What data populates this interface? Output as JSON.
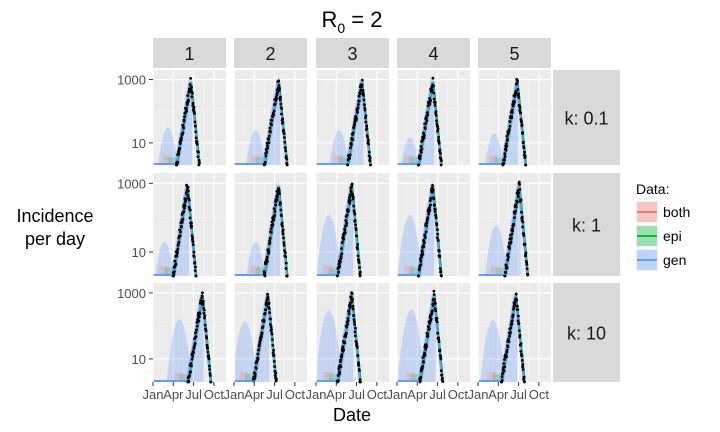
{
  "chart_data": {
    "type": "line",
    "title": "R",
    "title_subscript": "0",
    "title_suffix": " = 2",
    "xlabel": "Date",
    "ylabel_lines": [
      "Incidence",
      "per day"
    ],
    "y_scale": "log10",
    "ylim": [
      2,
      2000
    ],
    "y_ticks": [
      10,
      1000
    ],
    "y_tick_labels": [
      "10",
      "1000"
    ],
    "x_ticks": [
      "Jan",
      "Apr",
      "Jul",
      "Oct"
    ],
    "xlim_month_index": [
      0,
      10.8
    ],
    "x_tick_month_index": [
      0,
      3,
      6,
      9
    ],
    "columns": [
      "1",
      "2",
      "3",
      "4",
      "5"
    ],
    "rows": [
      "k: 0.1",
      "k: 1",
      "k: 10"
    ],
    "grid": true,
    "legend": {
      "title": "Data:",
      "placement": "right",
      "entries": [
        {
          "label": "both",
          "color": "#F8766D"
        },
        {
          "label": "epi",
          "color": "#00BA38"
        },
        {
          "label": "gen",
          "color": "#619CFF"
        }
      ]
    },
    "observed": {
      "description_series": "black points",
      "peaks_month_index": [
        [
          5.6,
          6.6,
          6.8,
          5.3,
          5.8
        ],
        [
          5.1,
          6.6,
          5.3,
          5.3,
          6.1
        ],
        [
          7.3,
          5.0,
          5.3,
          5.5,
          5.6
        ]
      ],
      "peak_value": 850,
      "rise_months": 2.2,
      "fall_months": 1.3
    },
    "ribbons": {
      "gen_shoulder_peak_value": [
        [
          30,
          25,
          25,
          15,
          20
        ],
        [
          20,
          20,
          120,
          120,
          60
        ],
        [
          160,
          140,
          300,
          320,
          150
        ]
      ]
    },
    "colors": {
      "panel_bg": "#EBEBEB",
      "strip_bg": "#D9D9D9",
      "grid_major": "#FFFFFF",
      "points": "#000000"
    }
  }
}
